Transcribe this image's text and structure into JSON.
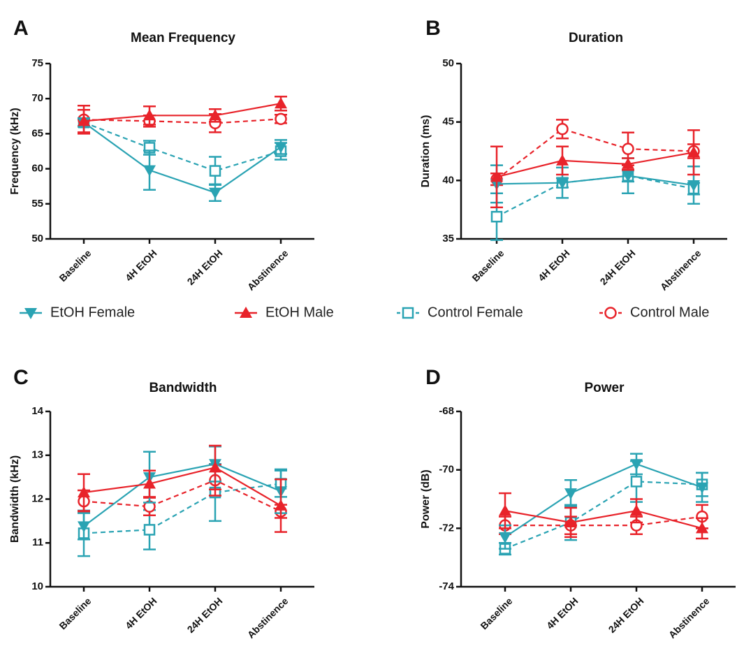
{
  "legend": [
    {
      "name": "EtOH Female",
      "color": "#2aa3b3",
      "marker": "triangle-down",
      "dash": false
    },
    {
      "name": "EtOH Male",
      "color": "#e8232a",
      "marker": "triangle-up",
      "dash": false
    },
    {
      "name": "Control Female",
      "color": "#2aa3b3",
      "marker": "square-open",
      "dash": true
    },
    {
      "name": "Control Male",
      "color": "#e8232a",
      "marker": "circle-open",
      "dash": true
    }
  ],
  "chart_data": [
    {
      "panel": "A",
      "type": "line",
      "title": "Mean Frequency",
      "xlabel": "",
      "ylabel": "Frequency (kHz)",
      "categories": [
        "Baseline",
        "4H EtOH",
        "24H EtOH",
        "Abstinence"
      ],
      "ylim": [
        50,
        75
      ],
      "yticks": [
        "50",
        "55",
        "60",
        "65",
        "70",
        "75"
      ],
      "series": [
        {
          "name": "EtOH Female",
          "values": [
            66.6,
            59.8,
            56.6,
            63.1
          ],
          "errors": [
            0.6,
            2.8,
            1.2,
            1.0
          ]
        },
        {
          "name": "EtOH Male",
          "values": [
            66.8,
            67.6,
            67.6,
            69.3
          ],
          "errors": [
            1.6,
            1.3,
            0.9,
            1.0
          ]
        },
        {
          "name": "Control Female",
          "values": [
            66.6,
            63.0,
            59.7,
            62.5
          ],
          "errors": [
            0.5,
            1.0,
            2.0,
            1.2
          ]
        },
        {
          "name": "Control Male",
          "values": [
            67.0,
            66.8,
            66.5,
            67.1
          ],
          "errors": [
            2.0,
            0.8,
            1.3,
            0.6
          ]
        }
      ]
    },
    {
      "panel": "B",
      "type": "line",
      "title": "Duration",
      "xlabel": "",
      "ylabel": "Duration (ms)",
      "categories": [
        "Baseline",
        "4H EtOH",
        "24H EtOH",
        "Abstinence"
      ],
      "ylim": [
        35,
        50
      ],
      "yticks": [
        "35",
        "40",
        "45",
        "50"
      ],
      "series": [
        {
          "name": "EtOH Female",
          "values": [
            39.7,
            39.8,
            40.4,
            39.6
          ],
          "errors": [
            1.6,
            1.3,
            1.5,
            1.6
          ]
        },
        {
          "name": "EtOH Male",
          "values": [
            40.3,
            41.7,
            41.4,
            42.4
          ],
          "errors": [
            2.6,
            1.2,
            0.5,
            1.9
          ]
        },
        {
          "name": "Control Female",
          "values": [
            36.9,
            39.8,
            40.4,
            39.3
          ],
          "errors": [
            2.0,
            0.4,
            0.5,
            0.5
          ]
        },
        {
          "name": "Control Male",
          "values": [
            40.1,
            44.4,
            42.7,
            42.5
          ],
          "errors": [
            0.5,
            0.8,
            1.4,
            0.6
          ]
        }
      ]
    },
    {
      "panel": "C",
      "type": "line",
      "title": "Bandwidth",
      "xlabel": "",
      "ylabel": "Bandwidth (kHz)",
      "categories": [
        "Baseline",
        "4H EtOH",
        "24H EtOH",
        "Abstinence"
      ],
      "ylim": [
        10,
        14
      ],
      "yticks": [
        "10",
        "11",
        "12",
        "13",
        "14"
      ],
      "series": [
        {
          "name": "EtOH Female",
          "values": [
            11.38,
            12.5,
            12.8,
            12.18
          ],
          "errors": [
            0.3,
            0.58,
            0.4,
            0.5
          ]
        },
        {
          "name": "EtOH Male",
          "values": [
            12.15,
            12.35,
            12.72,
            11.85
          ],
          "errors": [
            0.42,
            0.3,
            0.5,
            0.6
          ]
        },
        {
          "name": "Control Female",
          "values": [
            11.22,
            11.3,
            12.15,
            12.35
          ],
          "errors": [
            0.52,
            0.45,
            0.65,
            0.3
          ]
        },
        {
          "name": "Control Male",
          "values": [
            11.95,
            11.83,
            12.43,
            11.72
          ],
          "errors": [
            0.25,
            0.2,
            0.35,
            0.15
          ]
        }
      ]
    },
    {
      "panel": "D",
      "type": "line",
      "title": "Power",
      "xlabel": "",
      "ylabel": "Power (dB)",
      "categories": [
        "Baseline",
        "4H EtOH",
        "24H EtOH",
        "Abstinence"
      ],
      "ylim": [
        -74,
        -68
      ],
      "yticks": [
        "-74",
        "-72",
        "-70",
        "-68"
      ],
      "series": [
        {
          "name": "EtOH Female",
          "values": [
            -72.3,
            -70.8,
            -69.8,
            -70.6
          ],
          "errors": [
            0.4,
            0.45,
            0.35,
            0.5
          ]
        },
        {
          "name": "EtOH Male",
          "values": [
            -71.4,
            -71.8,
            -71.4,
            -72.0
          ],
          "errors": [
            0.6,
            0.5,
            0.4,
            0.35
          ]
        },
        {
          "name": "Control Female",
          "values": [
            -72.7,
            -71.8,
            -70.4,
            -70.5
          ],
          "errors": [
            0.2,
            0.6,
            0.7,
            0.4
          ]
        },
        {
          "name": "Control Male",
          "values": [
            -71.9,
            -71.9,
            -71.9,
            -71.6
          ],
          "errors": [
            0.3,
            0.3,
            0.3,
            0.4
          ]
        }
      ]
    }
  ]
}
